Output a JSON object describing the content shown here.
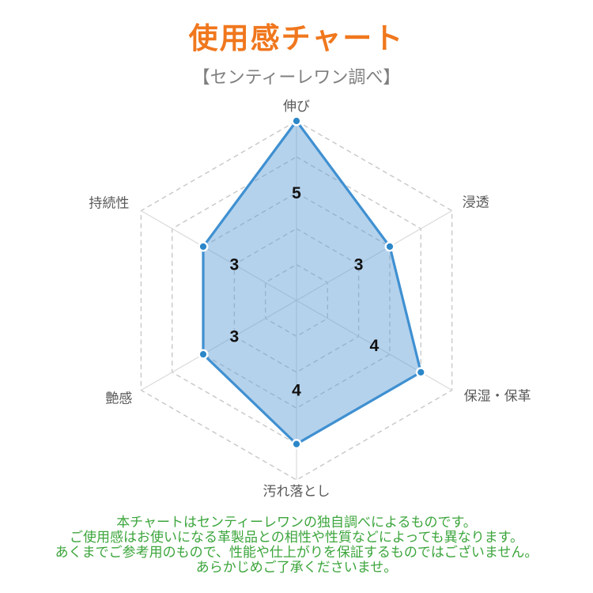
{
  "header": {
    "title": "使用感チャート",
    "subtitle": "【センティーレワン調べ】"
  },
  "chart_data": {
    "type": "radar",
    "title": "使用感チャート",
    "subtitle": "【センティーレワン調べ】",
    "categories": [
      "伸び",
      "浸透",
      "保湿・保革",
      "汚れ落とし",
      "艶感",
      "持続性"
    ],
    "values": [
      5,
      3,
      4,
      4,
      3,
      3
    ],
    "value_labels": [
      "5",
      "3",
      "4",
      "4",
      "3",
      "3"
    ],
    "axis_max": 5,
    "axis_min": 0,
    "grid_levels": [
      1,
      2,
      3,
      4,
      5
    ],
    "grid_style": "dashed",
    "legend": "none",
    "colors": {
      "series_stroke": "#3f90d1",
      "series_fill": "rgba(91,155,213,0.45)",
      "marker_fill": "#2b87c8",
      "marker_ring": "#ffffff",
      "grid_line": "#c8c8c8",
      "spoke_line": "#dadada",
      "axis_label": "#595959",
      "value_label": "#111111"
    }
  },
  "footer": {
    "color": "#3ca53c",
    "lines": [
      "本チャートはセンティーレワンの独自調べによるものです。",
      "ご使用感はお使いになる革製品との相性や性質などによっても異なります。",
      "あくまでご参考用のもので、性能や仕上がりを保証するものではございません。",
      "あらかじめご了承くださいませ。"
    ]
  }
}
